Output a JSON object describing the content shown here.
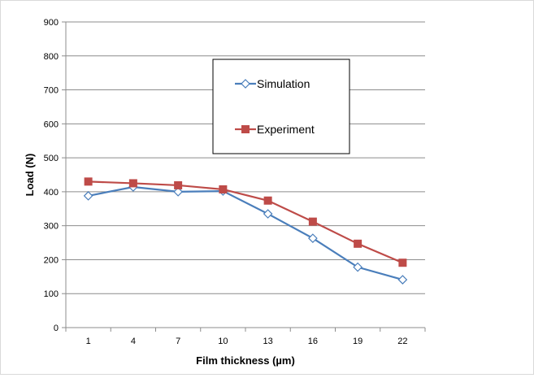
{
  "chart_data": {
    "type": "line",
    "title": "",
    "xlabel": "Film thickness (µm)",
    "ylabel": "Load (N)",
    "categories": [
      "1",
      "4",
      "7",
      "10",
      "13",
      "16",
      "19",
      "22"
    ],
    "ylim": [
      0,
      900
    ],
    "yticks": [
      0,
      100,
      200,
      300,
      400,
      500,
      600,
      700,
      800,
      900
    ],
    "grid": true,
    "legend_position": "inside-upper-center",
    "series": [
      {
        "name": "Simulation",
        "values": [
          388,
          414,
          400,
          402,
          335,
          263,
          178,
          141
        ],
        "color": "#4a7ebb",
        "marker": "diamond-open"
      },
      {
        "name": "Experiment",
        "values": [
          430,
          425,
          419,
          407,
          374,
          312,
          247,
          191
        ],
        "color": "#be4b48",
        "marker": "square"
      }
    ]
  }
}
